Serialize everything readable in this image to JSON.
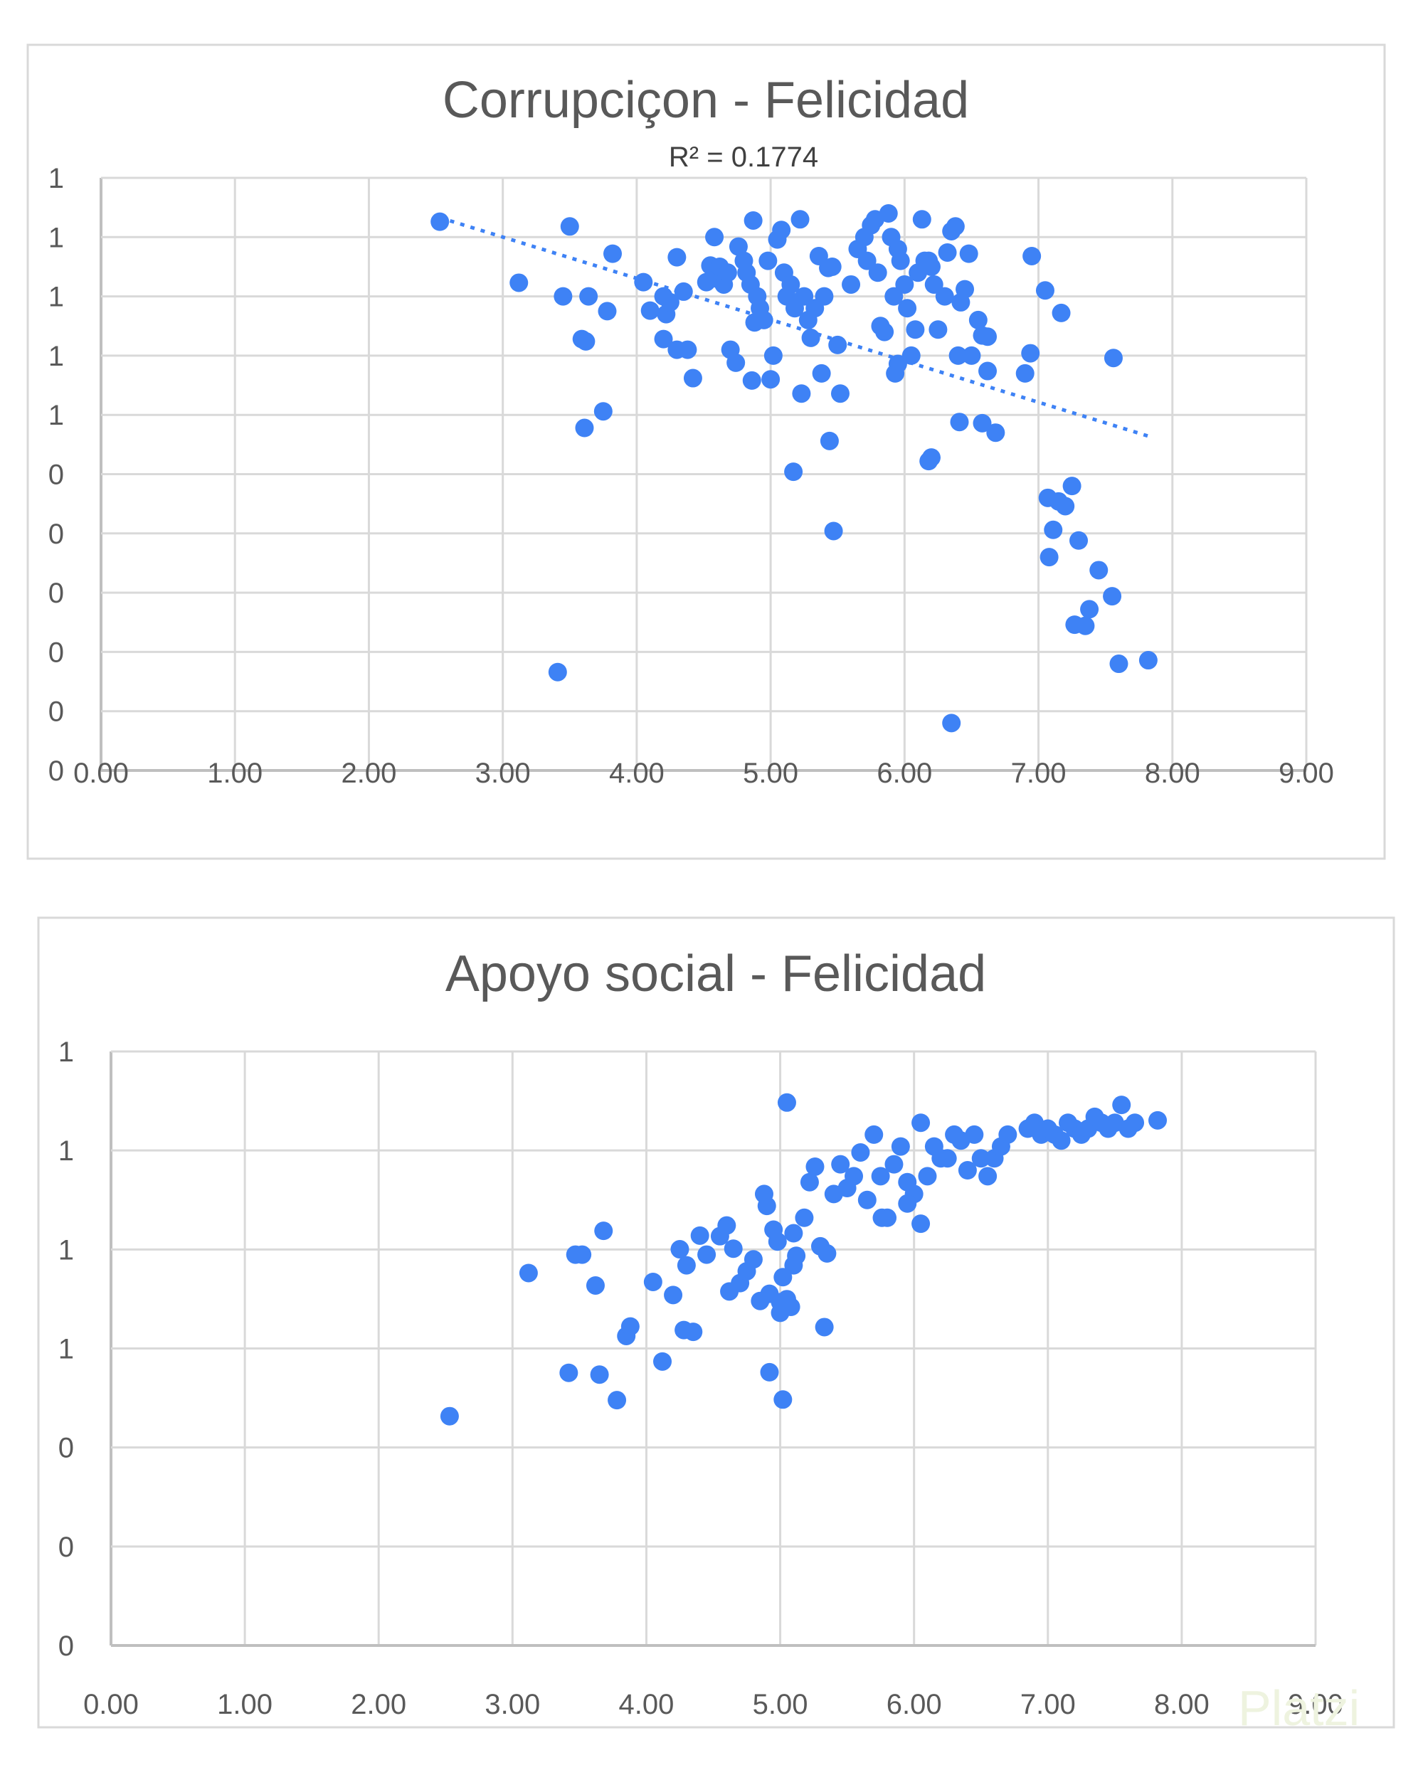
{
  "colors": {
    "marker": "#3e82f5",
    "grid": "#d9d9d9",
    "text": "#595959"
  },
  "watermark": "Platzi",
  "chart_data": [
    {
      "type": "scatter",
      "title": "Corrupciçon - Felicidad",
      "trendline": {
        "type": "linear",
        "label": "R² = 0.1774",
        "x_range": [
          2.53,
          7.85
        ]
      },
      "xlim": [
        0,
        9
      ],
      "ylim": [
        0,
        1
      ],
      "x_ticks": [
        "0.00",
        "1.00",
        "2.00",
        "3.00",
        "4.00",
        "5.00",
        "6.00",
        "7.00",
        "8.00",
        "9.00"
      ],
      "y_ticks": [
        "0",
        "0",
        "0",
        "0",
        "0",
        "0",
        "1",
        "1",
        "1",
        "1",
        "1"
      ],
      "grid": true,
      "points": [
        [
          2.53,
          0.926
        ],
        [
          3.12,
          0.823
        ],
        [
          3.5,
          0.918
        ],
        [
          3.45,
          0.8
        ],
        [
          3.64,
          0.8
        ],
        [
          3.82,
          0.872
        ],
        [
          3.78,
          0.775
        ],
        [
          3.59,
          0.728
        ],
        [
          3.62,
          0.724
        ],
        [
          3.61,
          0.578
        ],
        [
          3.75,
          0.606
        ],
        [
          3.41,
          0.166
        ],
        [
          4.05,
          0.824
        ],
        [
          4.1,
          0.776
        ],
        [
          4.2,
          0.8
        ],
        [
          4.22,
          0.77
        ],
        [
          4.25,
          0.79
        ],
        [
          4.3,
          0.866
        ],
        [
          4.35,
          0.808
        ],
        [
          4.2,
          0.728
        ],
        [
          4.3,
          0.71
        ],
        [
          4.38,
          0.71
        ],
        [
          4.42,
          0.662
        ],
        [
          4.52,
          0.824
        ],
        [
          4.55,
          0.852
        ],
        [
          4.58,
          0.9
        ],
        [
          4.6,
          0.83
        ],
        [
          4.62,
          0.85
        ],
        [
          4.65,
          0.82
        ],
        [
          4.68,
          0.84
        ],
        [
          4.7,
          0.71
        ],
        [
          4.74,
          0.688
        ],
        [
          4.76,
          0.884
        ],
        [
          4.8,
          0.86
        ],
        [
          4.82,
          0.84
        ],
        [
          4.85,
          0.82
        ],
        [
          4.87,
          0.928
        ],
        [
          4.9,
          0.8
        ],
        [
          4.92,
          0.78
        ],
        [
          4.95,
          0.76
        ],
        [
          4.88,
          0.756
        ],
        [
          4.86,
          0.658
        ],
        [
          4.98,
          0.86
        ],
        [
          5.0,
          0.66
        ],
        [
          5.02,
          0.7
        ],
        [
          5.05,
          0.896
        ],
        [
          5.08,
          0.912
        ],
        [
          5.1,
          0.84
        ],
        [
          5.12,
          0.8
        ],
        [
          5.15,
          0.82
        ],
        [
          5.18,
          0.78
        ],
        [
          5.22,
          0.93
        ],
        [
          5.25,
          0.8
        ],
        [
          5.28,
          0.76
        ],
        [
          5.3,
          0.73
        ],
        [
          5.33,
          0.78
        ],
        [
          5.36,
          0.868
        ],
        [
          5.4,
          0.8
        ],
        [
          5.43,
          0.848
        ],
        [
          5.46,
          0.85
        ],
        [
          5.5,
          0.718
        ],
        [
          5.52,
          0.636
        ],
        [
          5.38,
          0.67
        ],
        [
          5.23,
          0.636
        ],
        [
          5.17,
          0.504
        ],
        [
          5.44,
          0.556
        ],
        [
          5.47,
          0.404
        ],
        [
          5.6,
          0.82
        ],
        [
          5.65,
          0.88
        ],
        [
          5.7,
          0.9
        ],
        [
          5.72,
          0.86
        ],
        [
          5.75,
          0.92
        ],
        [
          5.78,
          0.93
        ],
        [
          5.8,
          0.84
        ],
        [
          5.82,
          0.75
        ],
        [
          5.85,
          0.74
        ],
        [
          5.88,
          0.94
        ],
        [
          5.9,
          0.9
        ],
        [
          5.92,
          0.8
        ],
        [
          5.95,
          0.88
        ],
        [
          5.97,
          0.86
        ],
        [
          6.0,
          0.82
        ],
        [
          6.02,
          0.78
        ],
        [
          6.05,
          0.7
        ],
        [
          6.08,
          0.744
        ],
        [
          6.1,
          0.84
        ],
        [
          6.13,
          0.93
        ],
        [
          6.15,
          0.86
        ],
        [
          6.18,
          0.86
        ],
        [
          6.2,
          0.85
        ],
        [
          6.22,
          0.82
        ],
        [
          6.25,
          0.744
        ],
        [
          6.3,
          0.8
        ],
        [
          6.32,
          0.874
        ],
        [
          6.35,
          0.91
        ],
        [
          6.38,
          0.918
        ],
        [
          6.4,
          0.7
        ],
        [
          6.42,
          0.79
        ],
        [
          6.45,
          0.812
        ],
        [
          6.48,
          0.872
        ],
        [
          6.5,
          0.7
        ],
        [
          6.55,
          0.76
        ],
        [
          6.58,
          0.734
        ],
        [
          6.62,
          0.732
        ],
        [
          6.62,
          0.674
        ],
        [
          5.93,
          0.67
        ],
        [
          5.95,
          0.686
        ],
        [
          6.41,
          0.588
        ],
        [
          6.58,
          0.586
        ],
        [
          6.68,
          0.57
        ],
        [
          6.9,
          0.67
        ],
        [
          6.95,
          0.868
        ],
        [
          6.94,
          0.704
        ],
        [
          7.05,
          0.81
        ],
        [
          7.17,
          0.772
        ],
        [
          7.56,
          0.696
        ],
        [
          7.07,
          0.46
        ],
        [
          7.15,
          0.454
        ],
        [
          7.25,
          0.48
        ],
        [
          7.2,
          0.446
        ],
        [
          7.11,
          0.406
        ],
        [
          7.08,
          0.36
        ],
        [
          7.3,
          0.388
        ],
        [
          7.45,
          0.338
        ],
        [
          7.55,
          0.294
        ],
        [
          7.38,
          0.272
        ],
        [
          7.27,
          0.246
        ],
        [
          7.35,
          0.244
        ],
        [
          7.6,
          0.18
        ],
        [
          7.82,
          0.186
        ],
        [
          6.18,
          0.522
        ],
        [
          6.2,
          0.528
        ],
        [
          6.35,
          0.08
        ]
      ]
    },
    {
      "type": "scatter",
      "title": "Apoyo social - Felicidad",
      "xlim": [
        0,
        9
      ],
      "ylim": [
        0,
        1
      ],
      "x_ticks": [
        "0.00",
        "1.00",
        "2.00",
        "3.00",
        "4.00",
        "5.00",
        "6.00",
        "7.00",
        "8.00",
        "9.00"
      ],
      "y_ticks": [
        "0",
        "0",
        "0",
        "1",
        "1",
        "1",
        "1"
      ],
      "grid": true,
      "points": [
        [
          2.53,
          0.386
        ],
        [
          3.12,
          0.627
        ],
        [
          3.42,
          0.459
        ],
        [
          3.47,
          0.658
        ],
        [
          3.52,
          0.658
        ],
        [
          3.62,
          0.606
        ],
        [
          3.65,
          0.456
        ],
        [
          3.68,
          0.698
        ],
        [
          3.78,
          0.413
        ],
        [
          3.85,
          0.521
        ],
        [
          3.88,
          0.537
        ],
        [
          4.05,
          0.612
        ],
        [
          4.12,
          0.478
        ],
        [
          4.2,
          0.59
        ],
        [
          4.25,
          0.667
        ],
        [
          4.3,
          0.64
        ],
        [
          4.28,
          0.531
        ],
        [
          4.35,
          0.528
        ],
        [
          4.4,
          0.69
        ],
        [
          4.45,
          0.658
        ],
        [
          4.55,
          0.689
        ],
        [
          4.6,
          0.707
        ],
        [
          4.65,
          0.668
        ],
        [
          4.62,
          0.596
        ],
        [
          4.7,
          0.61
        ],
        [
          4.75,
          0.63
        ],
        [
          4.8,
          0.65
        ],
        [
          4.85,
          0.58
        ],
        [
          4.88,
          0.76
        ],
        [
          4.9,
          0.74
        ],
        [
          4.95,
          0.7
        ],
        [
          4.98,
          0.68
        ],
        [
          5.0,
          0.56
        ],
        [
          5.02,
          0.62
        ],
        [
          5.05,
          0.583
        ],
        [
          5.08,
          0.57
        ],
        [
          5.1,
          0.64
        ],
        [
          5.12,
          0.656
        ],
        [
          5.18,
          0.72
        ],
        [
          5.22,
          0.78
        ],
        [
          5.26,
          0.806
        ],
        [
          5.3,
          0.672
        ],
        [
          5.35,
          0.66
        ],
        [
          5.4,
          0.76
        ],
        [
          5.45,
          0.81
        ],
        [
          5.5,
          0.77
        ],
        [
          5.55,
          0.79
        ],
        [
          5.6,
          0.83
        ],
        [
          5.65,
          0.75
        ],
        [
          5.7,
          0.86
        ],
        [
          5.75,
          0.79
        ],
        [
          5.8,
          0.72
        ],
        [
          5.85,
          0.81
        ],
        [
          5.9,
          0.84
        ],
        [
          5.95,
          0.78
        ],
        [
          6.0,
          0.76
        ],
        [
          6.05,
          0.88
        ],
        [
          6.1,
          0.79
        ],
        [
          6.15,
          0.84
        ],
        [
          6.2,
          0.82
        ],
        [
          6.25,
          0.82
        ],
        [
          6.3,
          0.86
        ],
        [
          6.35,
          0.85
        ],
        [
          6.4,
          0.8
        ],
        [
          6.45,
          0.86
        ],
        [
          6.5,
          0.82
        ],
        [
          6.55,
          0.79
        ],
        [
          6.6,
          0.82
        ],
        [
          6.65,
          0.84
        ],
        [
          6.7,
          0.86
        ],
        [
          6.85,
          0.87
        ],
        [
          6.9,
          0.88
        ],
        [
          6.95,
          0.86
        ],
        [
          7.0,
          0.87
        ],
        [
          7.05,
          0.86
        ],
        [
          7.1,
          0.85
        ],
        [
          7.15,
          0.88
        ],
        [
          7.2,
          0.87
        ],
        [
          7.25,
          0.86
        ],
        [
          7.3,
          0.87
        ],
        [
          7.35,
          0.89
        ],
        [
          7.4,
          0.88
        ],
        [
          7.45,
          0.87
        ],
        [
          7.5,
          0.88
        ],
        [
          7.55,
          0.91
        ],
        [
          7.6,
          0.87
        ],
        [
          7.65,
          0.88
        ],
        [
          7.82,
          0.884
        ],
        [
          5.05,
          0.914
        ],
        [
          6.05,
          0.71
        ],
        [
          4.92,
          0.46
        ],
        [
          5.02,
          0.414
        ],
        [
          5.33,
          0.536
        ],
        [
          5.0,
          0.578
        ],
        [
          4.92,
          0.592
        ],
        [
          5.1,
          0.694
        ],
        [
          5.76,
          0.72
        ],
        [
          5.95,
          0.744
        ]
      ]
    }
  ]
}
